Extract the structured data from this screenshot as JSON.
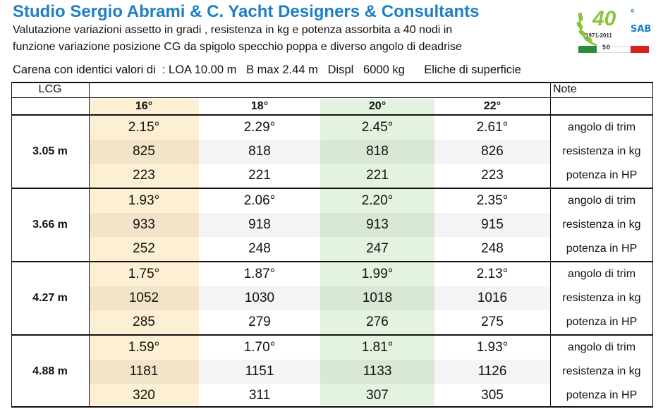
{
  "header": {
    "title": "Studio Sergio Abrami & C. Yacht Designers & Consultants",
    "subtitle_line1": "Valutazione variazioni assetto in gradi , resistenza in kg e potenza assorbita a 40 nodi  in",
    "subtitle_line2": "funzione variazione posizione CG da spigolo specchio poppa  e diverso angolo di deadrise",
    "specs_line": "Carena con identici valori di  : LOA 10.00 m   B max 2.44 m   Displ   6000 kg      Eliche di superficie"
  },
  "logo": {
    "number": "40",
    "degree": "°",
    "years": "1971-2011",
    "monogram": "SAB",
    "flag_text": "50",
    "colors": {
      "green": "#8ac43f",
      "blue": "#1f7fc4",
      "flag_green": "#2e8b3e",
      "flag_red": "#d8231f"
    }
  },
  "table": {
    "lcg_header": "LCG",
    "note_header": "Note",
    "deadrise_angles": [
      "16°",
      "18°",
      "20°",
      "22°"
    ],
    "note_labels": [
      "angolo di trim",
      "resistenza in kg",
      "potenza  in  HP"
    ],
    "groups": [
      {
        "lcg": "3.05 m",
        "trim": [
          "2.15°",
          "2.29°",
          "2.45°",
          "2.61°"
        ],
        "resistance": [
          "825",
          "818",
          "818",
          "826"
        ],
        "power": [
          "223",
          "221",
          "221",
          "223"
        ]
      },
      {
        "lcg": "3.66 m",
        "trim": [
          "1.93°",
          "2.06°",
          "2.20°",
          "2.35°"
        ],
        "resistance": [
          "933",
          "918",
          "913",
          "915"
        ],
        "power": [
          "252",
          "248",
          "247",
          "248"
        ]
      },
      {
        "lcg": "4.27 m",
        "trim": [
          "1.75°",
          "1.87°",
          "1.99°",
          "2.13°"
        ],
        "resistance": [
          "1052",
          "1030",
          "1018",
          "1016"
        ],
        "power": [
          "285",
          "279",
          "276",
          "275"
        ]
      },
      {
        "lcg": "4.88 m",
        "trim": [
          "1.59°",
          "1.70°",
          "1.81°",
          "1.93°"
        ],
        "resistance": [
          "1181",
          "1151",
          "1133",
          "1126"
        ],
        "power": [
          "320",
          "311",
          "307",
          "305"
        ]
      }
    ],
    "highlight_colors": {
      "col_16": "#fdefd3",
      "col_20": "#e3f3df"
    }
  }
}
